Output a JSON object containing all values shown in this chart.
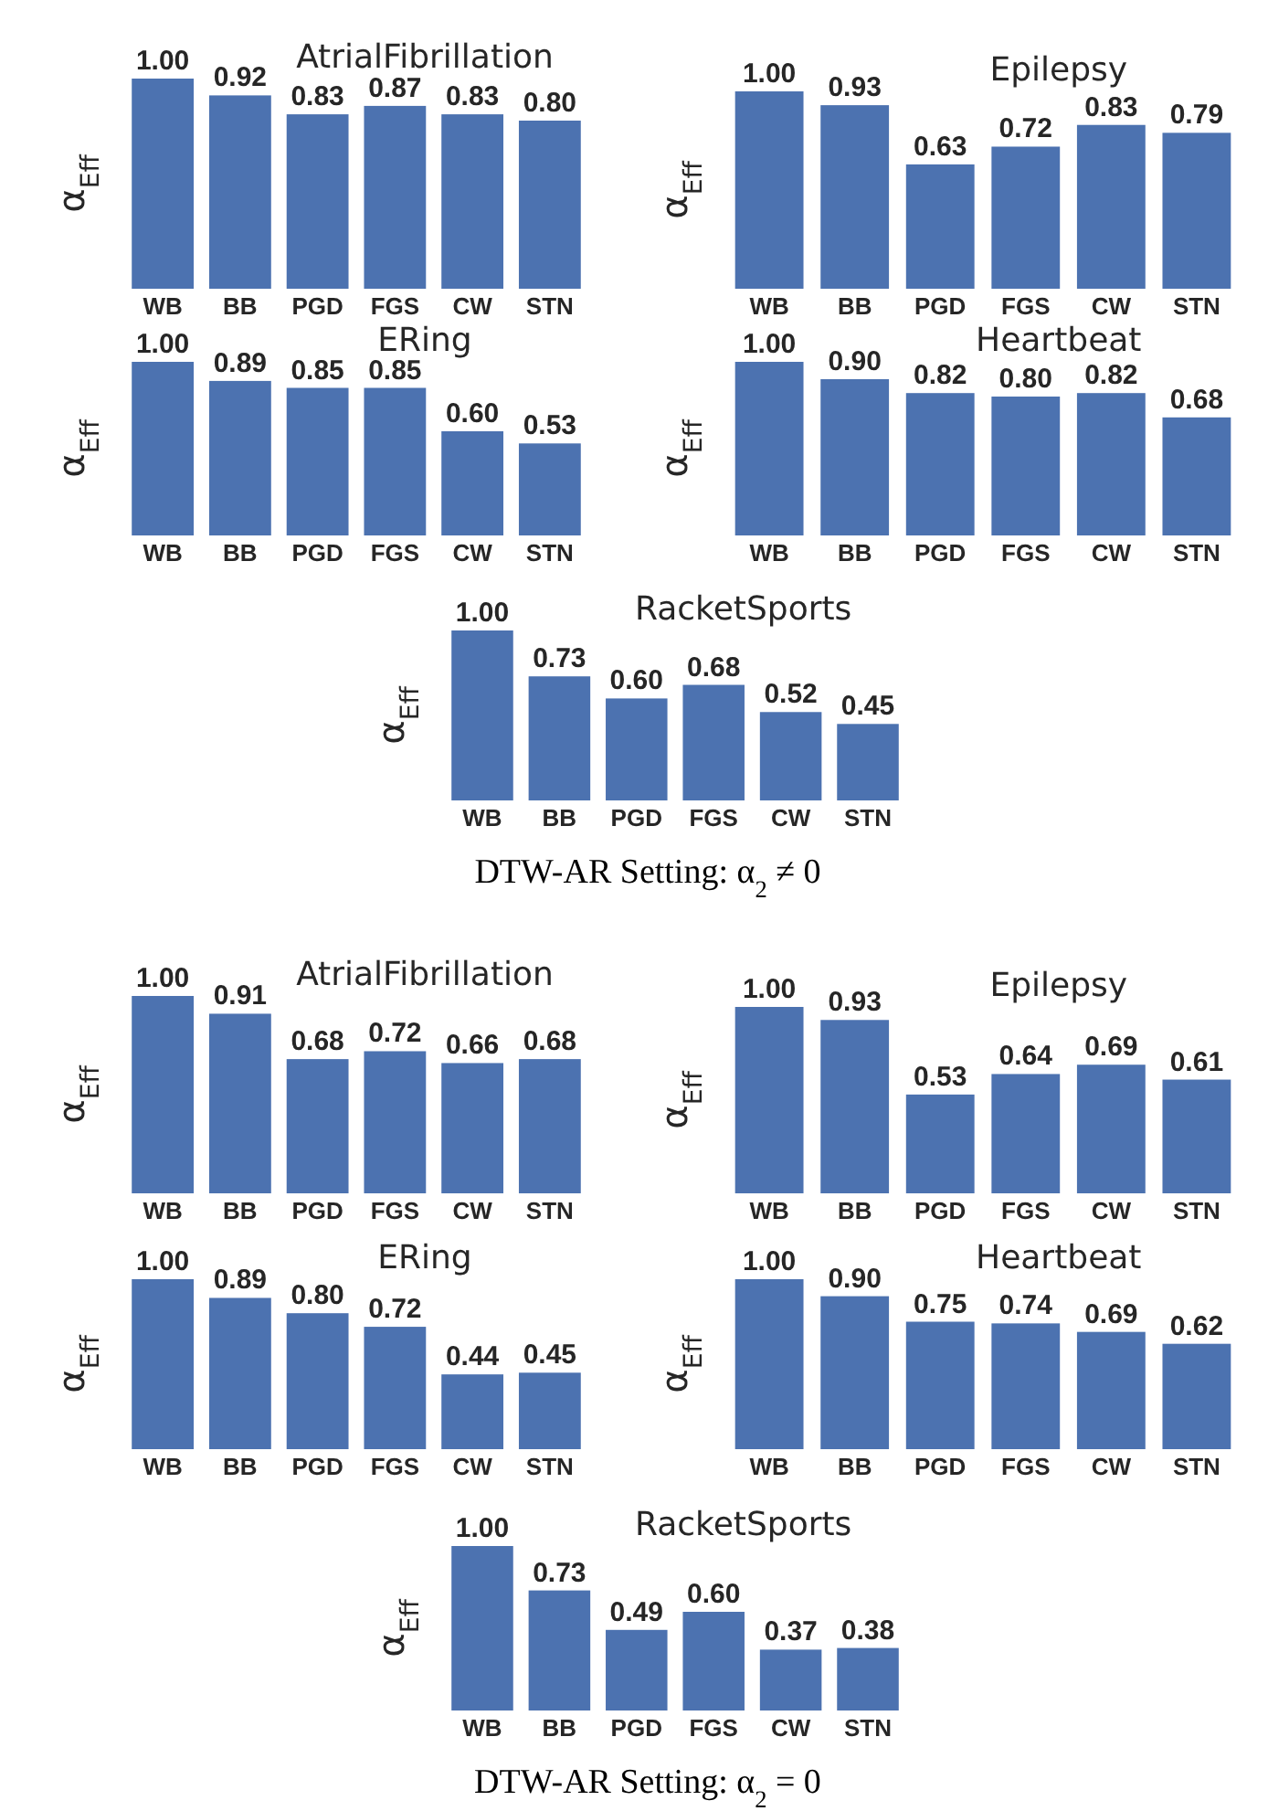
{
  "chart_data": [
    {
      "type": "bar",
      "title": "AtrialFibrillation",
      "ylabel": "α$_{Eff}$",
      "categories": [
        "WB",
        "BB",
        "PGD",
        "FGS",
        "CW",
        "STN"
      ],
      "values": [
        1.0,
        0.92,
        0.83,
        0.87,
        0.83,
        0.8
      ],
      "value_labels": [
        "1.00",
        "0.92",
        "0.83",
        "0.87",
        "0.83",
        "0.80"
      ],
      "color": "#4c72b0"
    },
    {
      "type": "bar",
      "title": "Epilepsy",
      "ylabel": "α$_{Eff}$",
      "categories": [
        "WB",
        "BB",
        "PGD",
        "FGS",
        "CW",
        "STN"
      ],
      "values": [
        1.0,
        0.93,
        0.63,
        0.72,
        0.83,
        0.79
      ],
      "value_labels": [
        "1.00",
        "0.93",
        "0.63",
        "0.72",
        "0.83",
        "0.79"
      ],
      "color": "#4c72b0"
    },
    {
      "type": "bar",
      "title": "ERing",
      "ylabel": "α$_{Eff}$",
      "categories": [
        "WB",
        "BB",
        "PGD",
        "FGS",
        "CW",
        "STN"
      ],
      "values": [
        1.0,
        0.89,
        0.85,
        0.85,
        0.6,
        0.53
      ],
      "value_labels": [
        "1.00",
        "0.89",
        "0.85",
        "0.85",
        "0.60",
        "0.53"
      ],
      "color": "#4c72b0"
    },
    {
      "type": "bar",
      "title": "Heartbeat",
      "ylabel": "α$_{Eff}$",
      "categories": [
        "WB",
        "BB",
        "PGD",
        "FGS",
        "CW",
        "STN"
      ],
      "values": [
        1.0,
        0.9,
        0.82,
        0.8,
        0.82,
        0.68
      ],
      "value_labels": [
        "1.00",
        "0.90",
        "0.82",
        "0.80",
        "0.82",
        "0.68"
      ],
      "color": "#4c72b0"
    },
    {
      "type": "bar",
      "title": "RacketSports",
      "ylabel": "α$_{Eff}$",
      "categories": [
        "WB",
        "BB",
        "PGD",
        "FGS",
        "CW",
        "STN"
      ],
      "values": [
        1.0,
        0.73,
        0.6,
        0.68,
        0.52,
        0.45
      ],
      "value_labels": [
        "1.00",
        "0.73",
        "0.60",
        "0.68",
        "0.52",
        "0.45"
      ],
      "color": "#4c72b0",
      "annotations": [
        "DTW-AR Setting: α$_{2}$ ≠ 0"
      ]
    },
    {
      "type": "bar",
      "title": "AtrialFibrillation",
      "ylabel": "α$_{Eff}$",
      "categories": [
        "WB",
        "BB",
        "PGD",
        "FGS",
        "CW",
        "STN"
      ],
      "values": [
        1.0,
        0.91,
        0.68,
        0.72,
        0.66,
        0.68
      ],
      "value_labels": [
        "1.00",
        "0.91",
        "0.68",
        "0.72",
        "0.66",
        "0.68"
      ],
      "color": "#4c72b0"
    },
    {
      "type": "bar",
      "title": "Epilepsy",
      "ylabel": "α$_{Eff}$",
      "categories": [
        "WB",
        "BB",
        "PGD",
        "FGS",
        "CW",
        "STN"
      ],
      "values": [
        1.0,
        0.93,
        0.53,
        0.64,
        0.69,
        0.61
      ],
      "value_labels": [
        "1.00",
        "0.93",
        "0.53",
        "0.64",
        "0.69",
        "0.61"
      ],
      "color": "#4c72b0"
    },
    {
      "type": "bar",
      "title": "ERing",
      "ylabel": "α$_{Eff}$",
      "categories": [
        "WB",
        "BB",
        "PGD",
        "FGS",
        "CW",
        "STN"
      ],
      "values": [
        1.0,
        0.89,
        0.8,
        0.72,
        0.44,
        0.45
      ],
      "value_labels": [
        "1.00",
        "0.89",
        "0.80",
        "0.72",
        "0.44",
        "0.45"
      ],
      "color": "#4c72b0"
    },
    {
      "type": "bar",
      "title": "Heartbeat",
      "ylabel": "α$_{Eff}$",
      "categories": [
        "WB",
        "BB",
        "PGD",
        "FGS",
        "CW",
        "STN"
      ],
      "values": [
        1.0,
        0.9,
        0.75,
        0.74,
        0.69,
        0.62
      ],
      "value_labels": [
        "1.00",
        "0.90",
        "0.75",
        "0.74",
        "0.69",
        "0.62"
      ],
      "color": "#4c72b0"
    },
    {
      "type": "bar",
      "title": "RacketSports",
      "ylabel": "α$_{Eff}$",
      "categories": [
        "WB",
        "BB",
        "PGD",
        "FGS",
        "CW",
        "STN"
      ],
      "values": [
        1.0,
        0.73,
        0.49,
        0.6,
        0.37,
        0.38
      ],
      "value_labels": [
        "1.00",
        "0.73",
        "0.49",
        "0.60",
        "0.37",
        "0.38"
      ],
      "color": "#4c72b0",
      "annotations": [
        "DTW-AR Setting: α$_{2}$ = 0"
      ]
    }
  ]
}
